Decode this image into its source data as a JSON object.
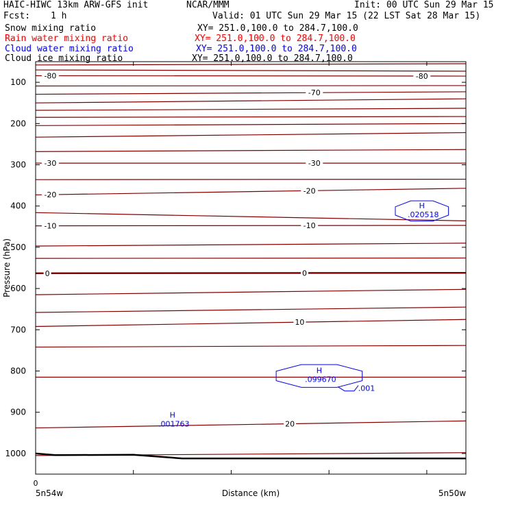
{
  "header": {
    "model": "HAIC-HIWC 13km ARW-GFS init",
    "center": "NCAR/MMM",
    "init": "Init: 00 UTC Sun 29 Mar 15",
    "fcst_label": "Fcst:",
    "fcst_value": "1 h",
    "valid": "Valid: 01 UTC Sun 29 Mar 15 (22 LST Sat 28 Mar 15)"
  },
  "fields": [
    {
      "name": "Snow mixing ratio",
      "xy": "XY= 251.0,100.0 to 284.7,100.0",
      "color": "#000000"
    },
    {
      "name": "Rain water mixing ratio",
      "xy": "XY= 251.0,100.0 to 284.7,100.0",
      "color": "#ff0000"
    },
    {
      "name": "Cloud water mixing ratio",
      "xy": "XY= 251.0,100.0 to 284.7,100.0",
      "color": "#0000ff"
    },
    {
      "name": "Cloud ice mixing ratio",
      "xy": "XY= 251.0,100.0 to 284.7,100.0",
      "color": "#000000"
    }
  ],
  "chart_data": {
    "type": "line",
    "ylabel": "Pressure (hPa)",
    "xlabel": "Distance (km)",
    "ylim": [
      1050,
      50
    ],
    "y_ticks": [
      100,
      200,
      300,
      400,
      500,
      600,
      700,
      800,
      900,
      1000
    ],
    "y_tick_labels": [
      "100",
      "200",
      "300",
      "400",
      "500",
      "600",
      "700",
      "800",
      "900",
      "1000"
    ],
    "x_ticks": [
      0,
      1,
      2,
      3,
      4
    ],
    "x_range": [
      0,
      4.4
    ],
    "x_tick_labels": [
      "0"
    ],
    "x_end_labels": [
      "5n54w",
      "5n50w"
    ],
    "isotherm_color": "#800000",
    "isotherms": [
      {
        "p_left": 58,
        "p_right": 55
      },
      {
        "p_left": 70,
        "p_right": 73
      },
      {
        "p_left": 84,
        "p_right": 85,
        "label": "-80",
        "label_x": [
          0.15,
          3.95
        ]
      },
      {
        "p_left": 109,
        "p_right": 108
      },
      {
        "p_left": 129,
        "p_right": 123,
        "label": "-70",
        "label_x": [
          2.85
        ]
      },
      {
        "p_left": 150,
        "p_right": 140
      },
      {
        "p_left": 168,
        "p_right": 163
      },
      {
        "p_left": 185,
        "p_right": 183
      },
      {
        "p_left": 205,
        "p_right": 200
      },
      {
        "p_left": 233,
        "p_right": 222
      },
      {
        "p_left": 268,
        "p_right": 263
      },
      {
        "p_left": 296,
        "p_right": 296,
        "label": "-30",
        "label_x": [
          0.15,
          2.85
        ]
      },
      {
        "p_left": 336,
        "p_right": 335
      },
      {
        "p_left": 373,
        "p_right": 357,
        "label": "-20",
        "label_x": [
          0.15,
          2.8
        ]
      },
      {
        "p_left": 416,
        "p_right": 436
      },
      {
        "p_left": 448,
        "p_right": 447,
        "label": "-10",
        "label_x": [
          0.15,
          2.8
        ]
      },
      {
        "p_left": 497,
        "p_right": 490
      },
      {
        "p_left": 527,
        "p_right": 526
      },
      {
        "p_left": 563,
        "p_right": 562,
        "label": "0",
        "label_x": [
          0.12,
          2.75
        ],
        "bold": true
      },
      {
        "p_left": 615,
        "p_right": 602
      },
      {
        "p_left": 658,
        "p_right": 645
      },
      {
        "p_left": 692,
        "p_right": 675,
        "label": "10",
        "label_x": [
          2.7
        ]
      },
      {
        "p_left": 742,
        "p_right": 738
      },
      {
        "p_left": 815,
        "p_right": 815
      },
      {
        "p_left": 938,
        "p_right": 921,
        "label": "20",
        "label_x": [
          2.6
        ]
      },
      {
        "p_left": 1005,
        "p_right": 998
      }
    ],
    "cloud_water": [
      {
        "marker": "H",
        "value": ".020518",
        "x": 3.95,
        "p": 412,
        "closed_contour": true
      },
      {
        "marker": "H",
        "value": ".099670",
        "x": 2.9,
        "p": 812,
        "closed_contour": true
      },
      {
        "marker": "",
        "value": ".001",
        "x": 3.3,
        "p": 845,
        "closed_contour": false
      },
      {
        "marker": "H",
        "value": ".001763",
        "x": 1.4,
        "p": 920,
        "closed_contour": false
      }
    ],
    "terrain_color": "#000000"
  }
}
